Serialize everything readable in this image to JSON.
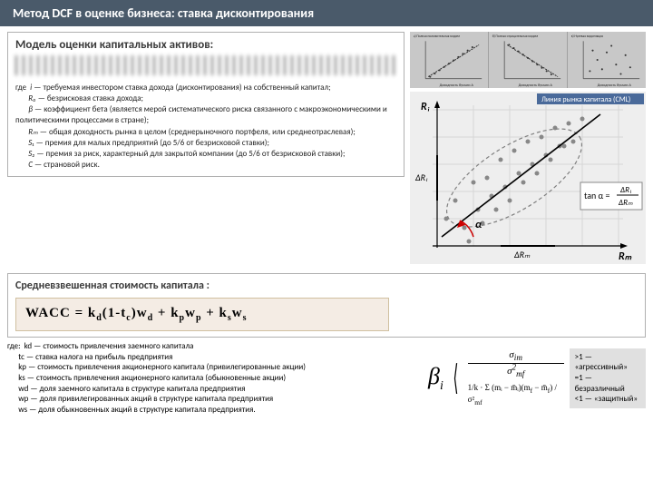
{
  "title": "Метод DCF в оценке бизнеса: ставка дисконтирования",
  "capm": {
    "title": "Модель оценки капитальных активов:",
    "defs_label": "где",
    "defs": [
      {
        "sym": "i",
        "text": "— требуемая инвестором ставка дохода (дисконтирования) на собственный капитал;"
      },
      {
        "sym": "R₀",
        "text": "— безрисковая ставка дохода;"
      },
      {
        "sym": "β",
        "text": "— коэффициент бета (является мерой систематического риска связанного с макроэкономическими и политическими процессами в стране);"
      },
      {
        "sym": "Rₘ",
        "text": "— общая доходность рынка в целом (среднерыночного портфеля, или среднеотраслевая);"
      },
      {
        "sym": "S₁",
        "text": "— премия для малых предприятий (до 5/6 от безрисковой ставки);"
      },
      {
        "sym": "S₂",
        "text": "— премия за риск, характерный для закрытой компании (до 5/6 от безрисковой ставки);"
      },
      {
        "sym": "C",
        "text": "— страновой риск."
      }
    ]
  },
  "wacc": {
    "title": "Средневзвешенная стоимость капитала :",
    "formula_html": "WACC = k<sub>d</sub>(1-t<sub>c</sub>)w<sub>d</sub> + k<sub>p</sub>w<sub>p</sub> + k<sub>s</sub>w<sub>s</sub>",
    "defs_label": "где:",
    "defs": [
      {
        "sym": "kd",
        "text": "— стоимость привлечения заемного капитала"
      },
      {
        "sym": "tc",
        "text": "— ставка налога на прибыль предприятия"
      },
      {
        "sym": "kp",
        "text": "— стоимость привлечения акционерного капитала (привилегированные акции)"
      },
      {
        "sym": "ks",
        "text": "— стоимость привлечения акционерного капитала (обыкновенные акции)"
      },
      {
        "sym": "wd",
        "text": "— доля заемного капитала в структуре капитала предприятия"
      },
      {
        "sym": "wp",
        "text": "— доля привилегированных акций в структуре капитала предприятия"
      },
      {
        "sym": "ws",
        "text": "— доля обыкновенных акций в структуре капитала предприятия."
      }
    ]
  },
  "beta": {
    "symbol": "β",
    "sub": "i",
    "frac_top_num": "σ",
    "frac_top_num_sub": "im",
    "frac_top_den": "σ",
    "frac_top_den_sub": "mf",
    "frac_top_den_sup": "2",
    "sum_html": "1/k · Σ (mᵢ − m̄ᵢ)(m<sub>f</sub> − m̄<sub>f</sub>) / σ²<sub>mf</sub>",
    "notes": [
      ">1 — «агрессивный»",
      "=1 — безразличный",
      "<1 — «защитный»"
    ]
  },
  "thumbs": {
    "headers": [
      "а) Полная положительная корреляция между доходностями",
      "б) Полная отрицательная корреляция между доходностями",
      "в) Нулевая корреляция"
    ],
    "axis_y": "Доходность бумаги В",
    "axis_x": "Доходность бумаги А"
  },
  "cml": {
    "title": "Линия рынка капитала (CML)",
    "y_label": "Rᵢ",
    "x_label": "Rₘ",
    "dy": "ΔRᵢ",
    "dx": "ΔRₘ",
    "alpha": "α",
    "tan_label": "tan α =",
    "tan_frac_num": "ΔRᵢ",
    "tan_frac_den": "ΔRₘ",
    "colors": {
      "bg": "#eeeeee",
      "axis": "#000000",
      "line": "#000000",
      "points": "#888888",
      "ellipse": "#808080",
      "arc": "#cc0000",
      "grid": "#d6d6d6"
    },
    "points": [
      [
        30,
        140
      ],
      [
        40,
        120
      ],
      [
        50,
        150
      ],
      [
        60,
        100
      ],
      [
        65,
        130
      ],
      [
        75,
        95
      ],
      [
        80,
        115
      ],
      [
        90,
        75
      ],
      [
        95,
        105
      ],
      [
        105,
        65
      ],
      [
        110,
        90
      ],
      [
        120,
        55
      ],
      [
        125,
        80
      ],
      [
        135,
        50
      ],
      [
        140,
        70
      ],
      [
        150,
        40
      ],
      [
        155,
        60
      ],
      [
        165,
        35
      ],
      [
        170,
        55
      ],
      [
        180,
        30
      ],
      [
        55,
        165
      ],
      [
        70,
        145
      ],
      [
        85,
        130
      ],
      [
        100,
        120
      ],
      [
        115,
        100
      ],
      [
        130,
        90
      ],
      [
        145,
        75
      ],
      [
        160,
        60
      ]
    ]
  }
}
